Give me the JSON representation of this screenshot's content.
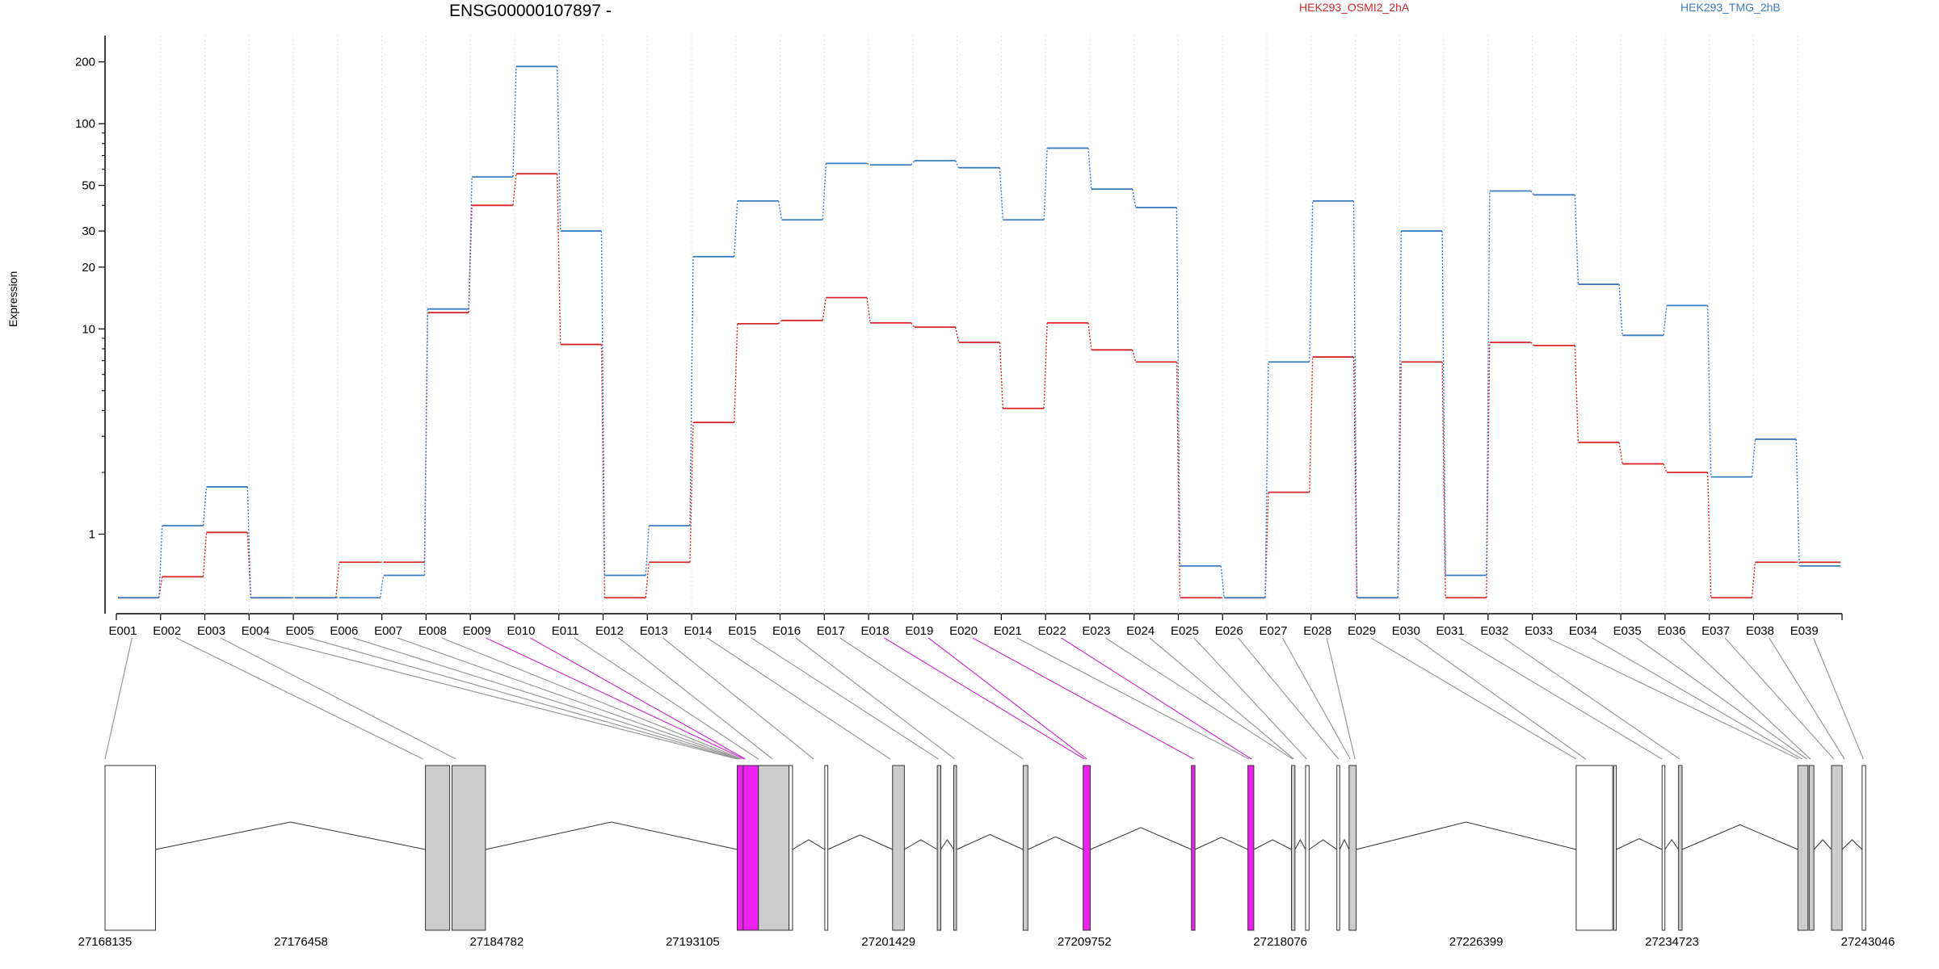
{
  "title": "ENSG00000107897 -",
  "ylabel": "Expression",
  "colors": {
    "sample_a": "#d62728",
    "sample_b": "#3b7dbf",
    "splice_highlight": "#cc33cc",
    "exon_gray": "#cccccc",
    "exon_magenta": "#ee22ee"
  },
  "chart_data": {
    "type": "line",
    "title": "ENSG00000107897 -",
    "ylabel": "Expression",
    "yscale": "log",
    "ylim": [
      0.5,
      250
    ],
    "yticks": [
      1,
      10,
      20,
      30,
      50,
      100,
      200
    ],
    "minor_yticks": [
      2,
      3,
      4,
      5,
      6,
      7,
      8,
      9,
      40,
      60,
      70,
      80,
      90
    ],
    "grid": "vertical-dotted",
    "legend": "top",
    "categories": [
      "E001",
      "E002",
      "E003",
      "E004",
      "E005",
      "E006",
      "E007",
      "E008",
      "E009",
      "E010",
      "E011",
      "E012",
      "E013",
      "E014",
      "E015",
      "E016",
      "E017",
      "E018",
      "E019",
      "E020",
      "E021",
      "E022",
      "E023",
      "E024",
      "E025",
      "E026",
      "E027",
      "E028",
      "E029",
      "E030",
      "E031",
      "E032",
      "E033",
      "E034",
      "E035",
      "E036",
      "E037",
      "E038",
      "E039"
    ],
    "series": [
      {
        "name": "HEK293_OSMI2_2hA",
        "color": "#d62728",
        "values": [
          0.49,
          0.62,
          1.02,
          0.49,
          0.49,
          0.73,
          0.73,
          12.0,
          40,
          57,
          8.4,
          0.49,
          0.73,
          3.5,
          10.6,
          11.0,
          14.2,
          10.7,
          10.2,
          8.6,
          4.1,
          10.7,
          7.9,
          6.9,
          0.49,
          0.49,
          1.6,
          7.3,
          0.49,
          6.9,
          0.49,
          8.6,
          8.3,
          2.8,
          2.2,
          2.0,
          0.49,
          0.73,
          0.73
        ]
      },
      {
        "name": "HEK293_TMG_2hB",
        "color": "#3b7dbf",
        "values": [
          0.49,
          1.1,
          1.7,
          0.49,
          0.49,
          0.49,
          0.63,
          12.5,
          55,
          190,
          30,
          0.63,
          1.1,
          22.5,
          42,
          34,
          64,
          63,
          66,
          61,
          34,
          76,
          48,
          39,
          0.7,
          0.49,
          6.9,
          42,
          0.49,
          30,
          0.63,
          47,
          45,
          16.5,
          9.3,
          13,
          1.9,
          2.9,
          0.7
        ]
      }
    ]
  },
  "gene_model": {
    "coordinate_labels": [
      "27168135",
      "27176458",
      "27184782",
      "27193105",
      "27201429",
      "27209752",
      "27218076",
      "27226399",
      "27234723",
      "27243046"
    ],
    "exons": [
      {
        "start": 27168135,
        "end": 27170280,
        "fill": "white"
      },
      {
        "start": 27181750,
        "end": 27182780,
        "fill": "gray"
      },
      {
        "start": 27182880,
        "end": 27184300,
        "fill": "gray"
      },
      {
        "start": 27195000,
        "end": 27195250,
        "fill": "magenta"
      },
      {
        "start": 27195250,
        "end": 27195900,
        "fill": "magenta"
      },
      {
        "start": 27195900,
        "end": 27197200,
        "fill": "gray"
      },
      {
        "start": 27197200,
        "end": 27197350,
        "fill": "white"
      },
      {
        "start": 27198720,
        "end": 27198850,
        "fill": "white"
      },
      {
        "start": 27201600,
        "end": 27202100,
        "fill": "gray"
      },
      {
        "start": 27203500,
        "end": 27203650,
        "fill": "gray"
      },
      {
        "start": 27204200,
        "end": 27204320,
        "fill": "gray"
      },
      {
        "start": 27207150,
        "end": 27207350,
        "fill": "gray"
      },
      {
        "start": 27209700,
        "end": 27210000,
        "fill": "magenta"
      },
      {
        "start": 27214300,
        "end": 27214450,
        "fill": "magenta"
      },
      {
        "start": 27216700,
        "end": 27216950,
        "fill": "magenta"
      },
      {
        "start": 27218550,
        "end": 27218700,
        "fill": "gray"
      },
      {
        "start": 27219150,
        "end": 27219300,
        "fill": "white"
      },
      {
        "start": 27220480,
        "end": 27220600,
        "fill": "white"
      },
      {
        "start": 27221000,
        "end": 27221300,
        "fill": "gray"
      },
      {
        "start": 27230650,
        "end": 27232200,
        "fill": "white"
      },
      {
        "start": 27232250,
        "end": 27232350,
        "fill": "white"
      },
      {
        "start": 27234300,
        "end": 27234420,
        "fill": "white"
      },
      {
        "start": 27235000,
        "end": 27235150,
        "fill": "gray"
      },
      {
        "start": 27240070,
        "end": 27240500,
        "fill": "gray"
      },
      {
        "start": 27240550,
        "end": 27240750,
        "fill": "gray"
      },
      {
        "start": 27241500,
        "end": 27241950,
        "fill": "gray"
      },
      {
        "start": 27242800,
        "end": 27242950,
        "fill": "white"
      }
    ],
    "connectors": [
      {
        "bin": "E001",
        "pos": 27168135,
        "highlight": false
      },
      {
        "bin": "E002",
        "pos": 27181650,
        "highlight": false
      },
      {
        "bin": "E003",
        "pos": 27183050,
        "highlight": false
      },
      {
        "bin": "E004",
        "pos": 27195000,
        "highlight": false
      },
      {
        "bin": "E005",
        "pos": 27195050,
        "highlight": false
      },
      {
        "bin": "E006",
        "pos": 27195100,
        "highlight": false
      },
      {
        "bin": "E007",
        "pos": 27195150,
        "highlight": false
      },
      {
        "bin": "E008",
        "pos": 27195200,
        "highlight": false
      },
      {
        "bin": "E009",
        "pos": 27195300,
        "highlight": true
      },
      {
        "bin": "E010",
        "pos": 27195350,
        "highlight": true
      },
      {
        "bin": "E011",
        "pos": 27195900,
        "highlight": false
      },
      {
        "bin": "E012",
        "pos": 27196500,
        "highlight": false
      },
      {
        "bin": "E013",
        "pos": 27198250,
        "highlight": false
      },
      {
        "bin": "E014",
        "pos": 27201500,
        "highlight": false
      },
      {
        "bin": "E015",
        "pos": 27203550,
        "highlight": false
      },
      {
        "bin": "E016",
        "pos": 27204250,
        "highlight": false
      },
      {
        "bin": "E017",
        "pos": 27207150,
        "highlight": false
      },
      {
        "bin": "E018",
        "pos": 27209750,
        "highlight": true
      },
      {
        "bin": "E019",
        "pos": 27209850,
        "highlight": true
      },
      {
        "bin": "E020",
        "pos": 27214400,
        "highlight": true
      },
      {
        "bin": "E021",
        "pos": 27216750,
        "highlight": false
      },
      {
        "bin": "E022",
        "pos": 27216850,
        "highlight": true
      },
      {
        "bin": "E023",
        "pos": 27218600,
        "highlight": false
      },
      {
        "bin": "E024",
        "pos": 27218650,
        "highlight": false
      },
      {
        "bin": "E025",
        "pos": 27219200,
        "highlight": false
      },
      {
        "bin": "E026",
        "pos": 27220550,
        "highlight": false
      },
      {
        "bin": "E027",
        "pos": 27221050,
        "highlight": false
      },
      {
        "bin": "E028",
        "pos": 27221250,
        "highlight": false
      },
      {
        "bin": "E029",
        "pos": 27230650,
        "highlight": false
      },
      {
        "bin": "E030",
        "pos": 27231050,
        "highlight": false
      },
      {
        "bin": "E031",
        "pos": 27234300,
        "highlight": false
      },
      {
        "bin": "E032",
        "pos": 27235050,
        "highlight": false
      },
      {
        "bin": "E033",
        "pos": 27240100,
        "highlight": false
      },
      {
        "bin": "E034",
        "pos": 27240250,
        "highlight": false
      },
      {
        "bin": "E035",
        "pos": 27240450,
        "highlight": false
      },
      {
        "bin": "E036",
        "pos": 27240600,
        "highlight": false
      },
      {
        "bin": "E037",
        "pos": 27241600,
        "highlight": false
      },
      {
        "bin": "E038",
        "pos": 27242050,
        "highlight": false
      },
      {
        "bin": "E039",
        "pos": 27242850,
        "highlight": false
      }
    ]
  }
}
